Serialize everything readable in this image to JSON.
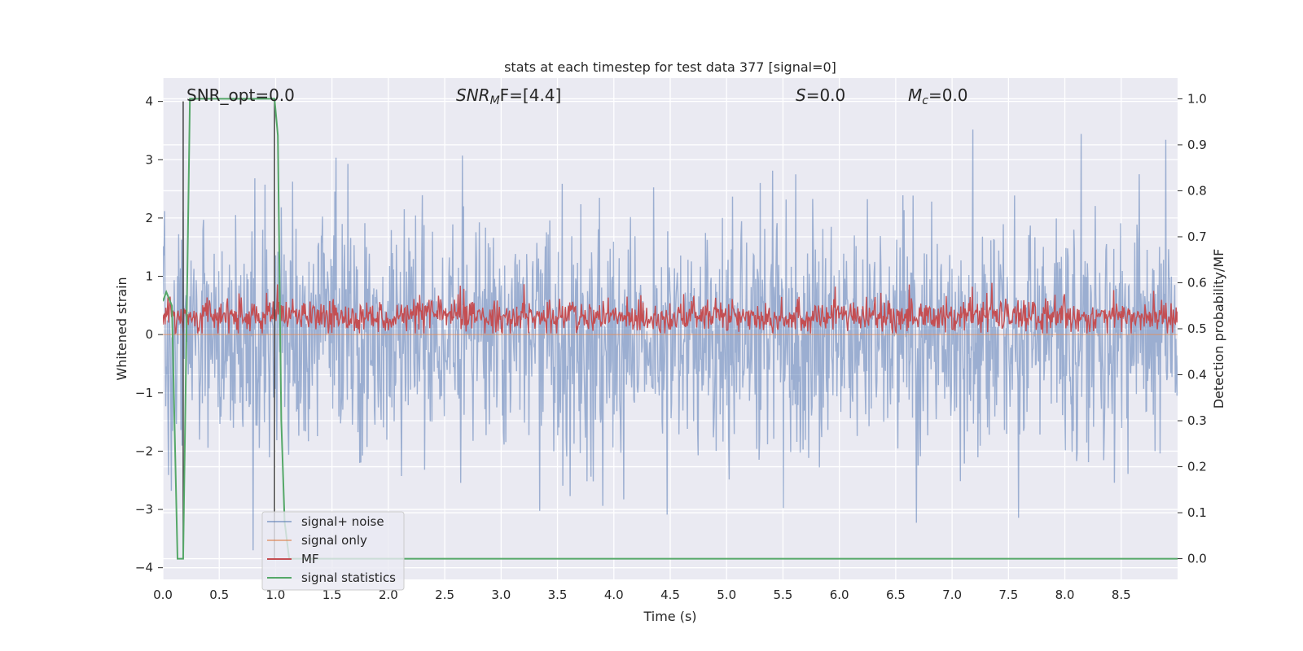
{
  "chart_data": {
    "type": "line",
    "title": "stats at each timestep for test data 377 [signal=0]",
    "xlabel": "Time (s)",
    "ylabel_left": "Whitened strain",
    "ylabel_right": "Detection probability/MF",
    "xlim": [
      0,
      9
    ],
    "ylim_left": [
      -4.2,
      4.4
    ],
    "ylim_right": [
      -0.045,
      1.045
    ],
    "x_ticks": [
      "0.0",
      "0.5",
      "1.0",
      "1.5",
      "2.0",
      "2.5",
      "3.0",
      "3.5",
      "4.0",
      "4.5",
      "5.0",
      "5.5",
      "6.0",
      "6.5",
      "7.0",
      "7.5",
      "8.0",
      "8.5"
    ],
    "y_ticks_left": [
      "4",
      "3",
      "2",
      "1",
      "0",
      "−1",
      "−2",
      "−3",
      "−4"
    ],
    "y_ticks_right": [
      "1.0",
      "0.9",
      "0.8",
      "0.7",
      "0.6",
      "0.5",
      "0.4",
      "0.3",
      "0.2",
      "0.1",
      "0.0"
    ],
    "grid": true,
    "legend_position": "lower-left",
    "annotations": {
      "snr_opt": "SNR_opt=0.0",
      "snr_mf_main": "SNR",
      "snr_mf_sub": "M",
      "snr_mf_rest": "F=[4.4]",
      "s_main": "S",
      "s_rest": "=0.0",
      "mc_main": "M",
      "mc_sub": "c",
      "mc_rest": "=0.0"
    },
    "series": [
      {
        "name": "signal+ noise",
        "color": "#4c72b0",
        "axis": "left",
        "description_values": {
          "typical_range": [
            -2.5,
            2.5
          ],
          "max": 4.0,
          "min": -3.75
        }
      },
      {
        "name": "signal only",
        "color": "#dd8452",
        "axis": "left",
        "values_constant": 0.0
      },
      {
        "name": "MF",
        "color": "#c44e52",
        "axis": "left",
        "description_values": {
          "typical_range": [
            0.05,
            0.65
          ],
          "peak": 1.0
        }
      },
      {
        "name": "signal statistics",
        "color": "#55a868",
        "axis": "right",
        "points": [
          [
            0.0,
            0.56
          ],
          [
            0.03,
            0.58
          ],
          [
            0.08,
            0.55
          ],
          [
            0.13,
            0.0
          ],
          [
            0.18,
            0.0
          ],
          [
            0.24,
            1.0
          ],
          [
            0.99,
            1.0
          ],
          [
            1.02,
            0.92
          ],
          [
            1.05,
            0.3
          ],
          [
            1.08,
            0.08
          ],
          [
            1.12,
            0.0
          ],
          [
            9.0,
            0.0
          ]
        ]
      }
    ],
    "vertical_lines": [
      {
        "x": 0.18,
        "color": "#444444"
      },
      {
        "x": 0.99,
        "color": "#444444"
      }
    ]
  }
}
